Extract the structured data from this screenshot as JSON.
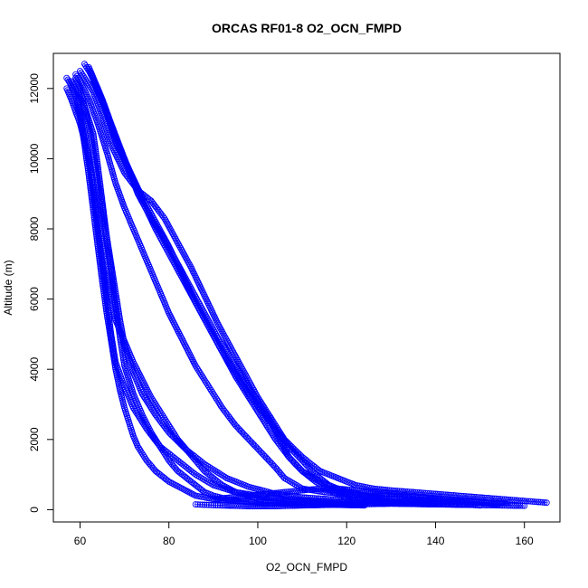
{
  "chart_data": {
    "type": "scatter",
    "title": "ORCAS RF01-8 O2_OCN_FMPD",
    "xlabel": "O2_OCN_FMPD",
    "ylabel": "Altitude (m)",
    "xlim": [
      54,
      168
    ],
    "ylim": [
      -350,
      13000
    ],
    "xticks": [
      60,
      80,
      100,
      120,
      140,
      160
    ],
    "yticks": [
      0,
      2000,
      4000,
      6000,
      8000,
      10000,
      12000
    ],
    "grid": false,
    "legend": "none",
    "color": "#0000ff",
    "marker": "open-circle",
    "series": [
      {
        "x": [
          57,
          58,
          59,
          60,
          61,
          62,
          63,
          64,
          65,
          66,
          67,
          68,
          70,
          72,
          74,
          76,
          78,
          80,
          82,
          84,
          86,
          88,
          90,
          92,
          95,
          98,
          100,
          105,
          110,
          115,
          120,
          124
        ],
        "y": [
          12300,
          12100,
          11800,
          11300,
          10600,
          9900,
          9100,
          8300,
          7500,
          6700,
          6000,
          5400,
          4800,
          4200,
          3700,
          3200,
          2800,
          2400,
          2000,
          1700,
          1400,
          1100,
          900,
          700,
          500,
          400,
          300,
          250,
          200,
          180,
          160,
          150
        ]
      },
      {
        "x": [
          58,
          59,
          61,
          63,
          64,
          65,
          66,
          67,
          68,
          69,
          70,
          72,
          74,
          76,
          78,
          80,
          82,
          84,
          86,
          88,
          90,
          93,
          96,
          100,
          104,
          108,
          112,
          116,
          120,
          124
        ],
        "y": [
          12200,
          12000,
          11500,
          10700,
          9800,
          8800,
          7800,
          6800,
          5800,
          4900,
          4100,
          3300,
          2700,
          2200,
          1800,
          1400,
          1100,
          900,
          700,
          500,
          400,
          300,
          250,
          200,
          180,
          160,
          150,
          140,
          130,
          120
        ]
      },
      {
        "x": [
          59,
          60,
          62,
          64,
          66,
          68,
          70,
          72,
          74,
          76,
          78,
          80,
          82,
          84,
          86,
          88,
          90,
          92,
          95,
          98,
          101,
          104,
          106,
          110,
          115,
          120,
          125,
          130,
          136,
          142,
          148,
          152,
          156
        ],
        "y": [
          12400,
          12200,
          11700,
          11000,
          10200,
          9300,
          8600,
          8000,
          7400,
          6800,
          6200,
          5600,
          5100,
          4600,
          4100,
          3700,
          3300,
          2900,
          2400,
          2000,
          1600,
          1200,
          900,
          600,
          500,
          450,
          400,
          380,
          350,
          300,
          250,
          200,
          180
        ]
      },
      {
        "x": [
          60,
          61,
          63,
          65,
          67,
          70,
          73,
          76,
          79,
          82,
          85,
          88,
          91,
          94,
          97,
          100,
          103,
          106,
          110,
          114,
          118,
          122,
          126,
          130,
          135,
          140,
          145,
          150,
          155,
          160,
          165
        ],
        "y": [
          12500,
          12300,
          11900,
          11200,
          10400,
          9600,
          9100,
          8800,
          8300,
          7600,
          6900,
          6100,
          5300,
          4600,
          3900,
          3200,
          2600,
          2000,
          1500,
          1100,
          900,
          700,
          600,
          550,
          500,
          450,
          400,
          350,
          300,
          250,
          200
        ]
      },
      {
        "x": [
          61,
          62,
          64,
          66,
          68,
          71,
          74,
          77,
          80,
          83,
          86,
          89,
          92,
          95,
          98,
          101,
          104,
          107,
          110,
          114,
          118,
          121,
          124,
          128
        ],
        "y": [
          12700,
          12500,
          12000,
          11300,
          10500,
          9700,
          8900,
          8200,
          7500,
          6700,
          5900,
          5200,
          4500,
          3800,
          3200,
          2600,
          2000,
          1500,
          1100,
          800,
          600,
          500,
          400,
          350
        ]
      },
      {
        "x": [
          58,
          59,
          60,
          61,
          62,
          63,
          64,
          65,
          66,
          67,
          68,
          69,
          70,
          71,
          72,
          73,
          75,
          77,
          80,
          83,
          86,
          90,
          95,
          100,
          105,
          110
        ],
        "y": [
          12100,
          11800,
          11200,
          10400,
          9500,
          8500,
          7500,
          6500,
          5600,
          4800,
          4000,
          3400,
          2900,
          2500,
          2100,
          1800,
          1400,
          1100,
          800,
          600,
          400,
          300,
          250,
          200,
          180,
          160
        ]
      },
      {
        "x": [
          57,
          58,
          60,
          62,
          63,
          64,
          65,
          66,
          67,
          68,
          70,
          72,
          75,
          78,
          82,
          86,
          90,
          95,
          100,
          106,
          112,
          118,
          124,
          130,
          136,
          142,
          148,
          150
        ],
        "y": [
          12000,
          11700,
          11000,
          10000,
          9000,
          8000,
          7000,
          6000,
          5000,
          4200,
          3500,
          2900,
          2300,
          1800,
          1400,
          1000,
          700,
          500,
          400,
          300,
          250,
          220,
          200,
          180,
          160,
          150,
          140,
          120
        ]
      },
      {
        "x": [
          62,
          63,
          65,
          67,
          70,
          73,
          76,
          79,
          82,
          85,
          88,
          91,
          94,
          97,
          100,
          103,
          105,
          107,
          110,
          113,
          117,
          121,
          125
        ],
        "y": [
          12600,
          12300,
          11700,
          11000,
          10000,
          9000,
          8300,
          7700,
          7000,
          6300,
          5600,
          4900,
          4300,
          3700,
          3100,
          2500,
          2000,
          1500,
          1100,
          800,
          500,
          300,
          200
        ]
      },
      {
        "x": [
          59,
          60,
          61,
          62,
          63,
          64,
          65,
          66,
          67,
          68,
          69,
          70,
          72,
          74,
          77,
          80,
          84,
          88,
          93,
          98,
          104,
          110,
          116,
          122,
          128,
          134,
          140
        ],
        "y": [
          12300,
          12000,
          11500,
          10900,
          10200,
          9400,
          8600,
          7800,
          7000,
          6200,
          5400,
          4700,
          3900,
          3300,
          2700,
          2200,
          1700,
          1300,
          900,
          650,
          450,
          350,
          300,
          260,
          220,
          200,
          180
        ]
      },
      {
        "x": [
          63,
          64,
          66,
          68,
          71,
          74,
          77,
          80,
          83,
          86,
          89,
          92,
          95,
          98,
          101,
          104,
          107,
          110,
          113,
          116,
          119,
          122,
          126,
          130,
          134,
          138,
          142,
          146
        ],
        "y": [
          12200,
          11900,
          11300,
          10600,
          9700,
          8800,
          8000,
          7300,
          6600,
          5900,
          5200,
          4500,
          3900,
          3300,
          2800,
          2300,
          1800,
          1400,
          1000,
          700,
          500,
          400,
          350,
          300,
          280,
          260,
          240,
          220
        ]
      },
      {
        "x": [
          86,
          88,
          90,
          92,
          95,
          98,
          101,
          104,
          107,
          110,
          114,
          118,
          122,
          126,
          130,
          135,
          140,
          145,
          150,
          155,
          160
        ],
        "y": [
          150,
          140,
          130,
          120,
          110,
          100,
          100,
          100,
          110,
          120,
          130,
          140,
          150,
          160,
          170,
          160,
          150,
          140,
          130,
          120,
          110
        ]
      },
      {
        "x": [
          90,
          94,
          98,
          102,
          106,
          110,
          114,
          118,
          122,
          126,
          130,
          134,
          138,
          142,
          146,
          150,
          154
        ],
        "y": [
          300,
          350,
          400,
          450,
          500,
          550,
          600,
          600,
          550,
          500,
          450,
          400,
          350,
          300,
          250,
          200,
          150
        ]
      }
    ]
  }
}
